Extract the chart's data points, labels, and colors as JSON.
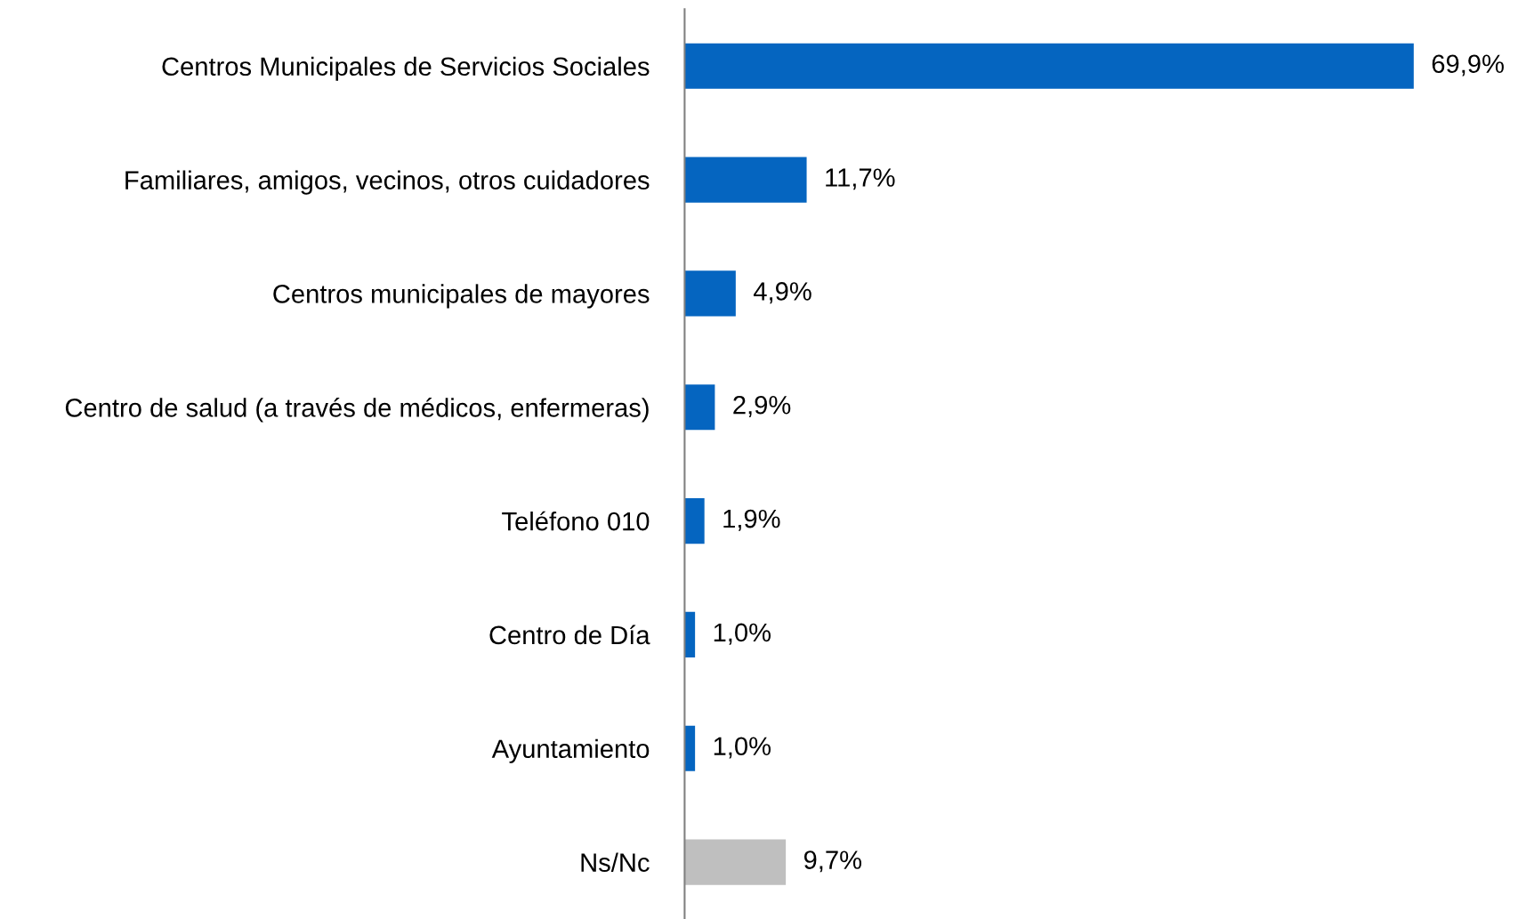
{
  "chart_data": {
    "type": "bar",
    "orientation": "horizontal",
    "categories": [
      "Centros Municipales de Servicios Sociales",
      "Familiares, amigos, vecinos, otros cuidadores",
      "Centros municipales de mayores",
      "Centro de salud (a través de médicos, enfermeras)",
      "Teléfono 010",
      "Centro de Día",
      "Ayuntamiento",
      "Ns/Nc"
    ],
    "values": [
      69.9,
      11.7,
      4.9,
      2.9,
      1.9,
      1.0,
      1.0,
      9.7
    ],
    "colors": [
      "#0565c0",
      "#0565c0",
      "#0565c0",
      "#0565c0",
      "#0565c0",
      "#0565c0",
      "#0565c0",
      "#bfbfbf"
    ],
    "value_labels": [
      "69,9%",
      "11,7%",
      "4,9%",
      "2,9%",
      "1,9%",
      "1,0%",
      "1,0%",
      "9,7%"
    ],
    "grid": false,
    "legend": false
  }
}
